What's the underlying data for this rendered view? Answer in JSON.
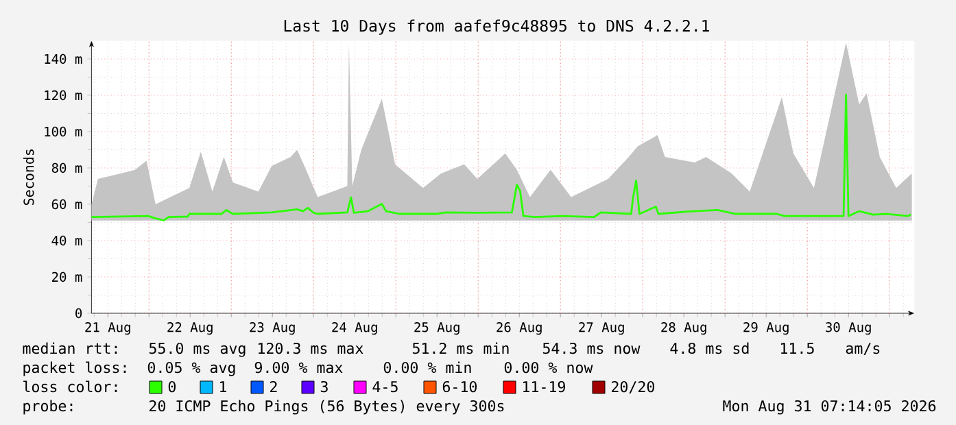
{
  "chart_data": {
    "type": "line",
    "title": "Last 10 Days from aafef9c48895 to DNS 4.2.2.1",
    "ylabel": "Seconds",
    "xlim": [
      "2026-08-21T07:14",
      "2026-08-31T07:14"
    ],
    "xticks": [
      {
        "value": "2026-08-21T12:00",
        "label": "21 Aug"
      },
      {
        "value": "2026-08-22T12:00",
        "label": "22 Aug"
      },
      {
        "value": "2026-08-23T12:00",
        "label": "23 Aug"
      },
      {
        "value": "2026-08-24T12:00",
        "label": "24 Aug"
      },
      {
        "value": "2026-08-25T12:00",
        "label": "25 Aug"
      },
      {
        "value": "2026-08-26T12:00",
        "label": "26 Aug"
      },
      {
        "value": "2026-08-27T12:00",
        "label": "27 Aug"
      },
      {
        "value": "2026-08-28T12:00",
        "label": "28 Aug"
      },
      {
        "value": "2026-08-29T12:00",
        "label": "29 Aug"
      },
      {
        "value": "2026-08-30T12:00",
        "label": "30 Aug"
      },
      {
        "value": "2026-08-22T00:00",
        "label": null
      },
      {
        "value": "2026-08-23T00:00",
        "label": null
      },
      {
        "value": "2026-08-24T00:00",
        "label": null
      },
      {
        "value": "2026-08-25T00:00",
        "label": null
      },
      {
        "value": "2026-08-26T00:00",
        "label": null
      },
      {
        "value": "2026-08-27T00:00",
        "label": null
      },
      {
        "value": "2026-08-28T00:00",
        "label": null
      },
      {
        "value": "2026-08-29T00:00",
        "label": null
      },
      {
        "value": "2026-08-30T00:00",
        "label": null
      },
      {
        "value": "2026-08-31T00:00",
        "label": null
      }
    ],
    "ylim": [
      0,
      150
    ],
    "yticks": [
      0,
      {
        "value": 20,
        "label": "20 m"
      },
      {
        "value": 40,
        "label": "40 m"
      },
      {
        "value": 60,
        "label": "60 m"
      },
      {
        "value": 80,
        "label": "80 m"
      },
      {
        "value": 100,
        "label": "100 m"
      },
      {
        "value": 120,
        "label": "120 m"
      },
      {
        "value": 140,
        "label": "140 m"
      }
    ],
    "grid": true,
    "legend": "bottom",
    "legend_title": "loss color:",
    "series": [
      {
        "color": "#c4c4c4",
        "x": [
          "2026-08-21T07:14",
          "2026-08-21T09:07",
          "2026-08-21T15:50",
          "2026-08-21T19:55",
          "2026-08-21T23:17",
          "2026-08-22T01:55",
          "2026-08-22T11:46",
          "2026-08-22T15:07",
          "2026-08-22T18:29",
          "2026-08-22T21:50",
          "2026-08-23T00:29",
          "2026-08-23T07:55",
          "2026-08-23T11:46",
          "2026-08-23T17:17",
          "2026-08-23T19:12",
          "2026-08-23T21:07",
          "2026-08-24T01:12",
          "2026-08-24T09:50",
          "2026-08-24T10:19",
          "2026-08-24T11:17",
          "2026-08-24T13:55",
          "2026-08-24T19:55",
          "2026-08-24T23:46",
          "2026-08-25T07:55",
          "2026-08-25T13:12",
          "2026-08-25T19:55",
          "2026-08-25T23:46",
          "2026-08-26T07:55",
          "2026-08-26T11:17",
          "2026-08-26T15:07",
          "2026-08-26T21:07",
          "2026-08-27T03:07",
          "2026-08-27T13:55",
          "2026-08-27T19:55",
          "2026-08-27T22:34",
          "2026-08-28T04:19",
          "2026-08-28T06:29",
          "2026-08-28T15:07",
          "2026-08-28T18:29",
          "2026-08-29T01:55",
          "2026-08-29T07:12",
          "2026-08-29T16:34",
          "2026-08-29T19:55",
          "2026-08-30T01:55",
          "2026-08-30T11:17",
          "2026-08-30T15:07",
          "2026-08-30T17:17",
          "2026-08-30T21:07",
          "2026-08-31T01:55",
          "2026-08-31T06:29"
        ],
        "values": [
          null,
          null,
          null,
          null,
          null,
          null,
          null,
          null,
          null,
          null,
          null,
          null,
          null,
          null,
          null,
          null,
          null,
          null,
          null,
          null,
          null,
          null,
          null,
          null,
          null,
          null,
          null,
          null,
          null,
          null,
          null,
          null,
          null,
          null,
          null,
          null,
          null,
          null,
          null,
          null,
          null,
          null,
          null,
          null,
          null,
          null,
          null,
          null,
          null,
          null
        ],
        "lower": [
          51,
          51,
          51,
          51,
          51,
          51,
          51,
          51,
          51,
          51,
          51,
          51,
          51,
          51,
          51,
          51,
          51,
          51,
          51,
          51,
          51,
          51,
          51,
          51,
          51,
          51,
          51,
          51,
          51,
          51,
          51,
          51,
          51,
          51,
          51,
          51,
          51,
          51,
          51,
          51,
          51,
          51,
          51,
          51,
          51,
          51,
          51,
          51,
          51,
          51
        ],
        "upper": [
          60,
          74,
          77,
          79,
          84,
          60,
          69,
          89,
          67,
          86,
          72,
          67,
          81,
          86,
          90,
          82,
          64,
          70,
          149,
          70,
          90,
          118,
          82,
          69,
          77,
          82,
          74,
          88,
          79,
          64,
          79,
          64,
          74,
          86,
          92,
          98,
          86,
          83,
          86,
          77,
          67,
          119,
          88,
          69,
          149,
          115,
          121,
          86,
          69,
          77
        ]
      },
      {
        "name": "0",
        "color": "#2bff00",
        "x": [
          "2026-08-21T07:14",
          "2026-08-21T23:46",
          "2026-08-22T01:55",
          "2026-08-22T04:19",
          "2026-08-22T05:46",
          "2026-08-22T11:17",
          "2026-08-22T11:46",
          "2026-08-22T21:07",
          "2026-08-22T22:34",
          "2026-08-23T00:29",
          "2026-08-23T11:46",
          "2026-08-23T19:12",
          "2026-08-23T20:53",
          "2026-08-23T22:19",
          "2026-08-24T00:00",
          "2026-08-24T01:12",
          "2026-08-24T09:50",
          "2026-08-24T10:55",
          "2026-08-24T11:46",
          "2026-08-24T15:50",
          "2026-08-24T19:55",
          "2026-08-24T21:07",
          "2026-08-25T01:12",
          "2026-08-25T11:46",
          "2026-08-25T14:38",
          "2026-08-25T23:46",
          "2026-08-26T09:50",
          "2026-08-26T11:17",
          "2026-08-26T12:14",
          "2026-08-26T13:12",
          "2026-08-26T16:34",
          "2026-08-27T00:29",
          "2026-08-27T09:50",
          "2026-08-27T11:46",
          "2026-08-27T20:38",
          "2026-08-27T21:07",
          "2026-08-27T22:05",
          "2026-08-27T23:02",
          "2026-08-28T03:50",
          "2026-08-28T04:34",
          "2026-08-28T13:12",
          "2026-08-28T21:50",
          "2026-08-29T03:07",
          "2026-08-29T15:07",
          "2026-08-29T17:17",
          "2026-08-30T10:34",
          "2026-08-30T11:17",
          "2026-08-30T12:00",
          "2026-08-30T15:07",
          "2026-08-30T19:12",
          "2026-08-30T23:17",
          "2026-08-31T05:17",
          "2026-08-31T06:14"
        ],
        "values": [
          53.0,
          53.5,
          52.2,
          51.2,
          53.0,
          53.2,
          54.7,
          54.7,
          56.8,
          54.7,
          55.5,
          57.2,
          56.2,
          58.0,
          55.3,
          54.7,
          55.5,
          63.8,
          55.3,
          56.2,
          60.2,
          56.2,
          54.7,
          54.7,
          55.5,
          55.3,
          55.5,
          70.8,
          67.3,
          53.5,
          53.0,
          53.5,
          53.0,
          55.5,
          54.7,
          63.0,
          73.1,
          54.7,
          58.7,
          54.7,
          56.0,
          56.8,
          54.7,
          54.7,
          53.5,
          53.5,
          120.3,
          53.5,
          56.2,
          54.3,
          54.7,
          53.5,
          54.3
        ]
      },
      {
        "name": "1",
        "color": "#00b8ff"
      },
      {
        "name": "2",
        "color": "#0059ff"
      },
      {
        "name": "3",
        "color": "#5e00ff"
      },
      {
        "name": "4-5",
        "color": "#ff00ff"
      },
      {
        "name": "6-10",
        "color": "#ff5500"
      },
      {
        "name": "11-19",
        "color": "#ff0000"
      },
      {
        "name": "20/20",
        "color": "#a10000"
      }
    ],
    "annotations": [
      "median rtt:",
      "55.0 ms avg",
      "120.3 ms max",
      "51.2 ms min",
      "54.3 ms now",
      "4.8 ms sd",
      "11.5",
      "am/s",
      "packet loss:",
      "0.05 % avg",
      "9.00 % max",
      "0.00 % min",
      "0.00 % now",
      "probe:",
      "20 ICMP Echo Pings (56 Bytes) every 300s",
      "Mon Aug 31 07:14:05 2026"
    ]
  }
}
